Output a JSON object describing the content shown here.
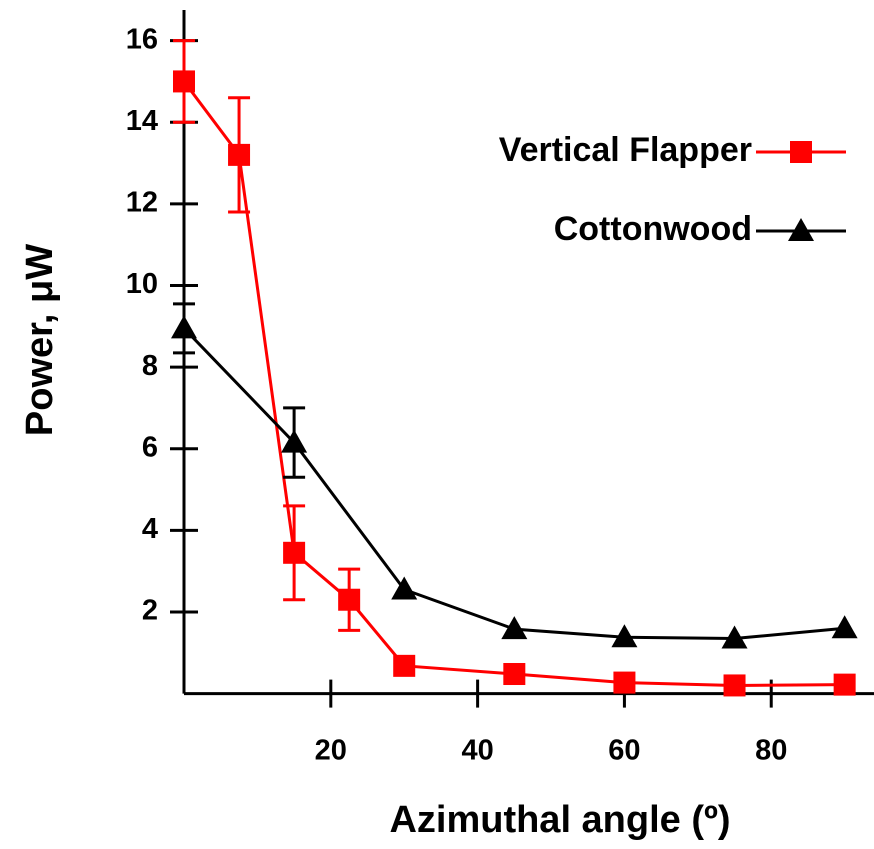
{
  "chart_data": {
    "type": "line",
    "x_label": "Azimuthal angle (º)",
    "y_label": "Power, μW",
    "xlim": [
      0,
      94
    ],
    "ylim": [
      0,
      16.75
    ],
    "xticks": [
      20,
      40,
      60,
      80
    ],
    "yticks": [
      2,
      4,
      6,
      8,
      10,
      12,
      14,
      16
    ],
    "legend": "top-right",
    "series": [
      {
        "name": "Vertical Flapper",
        "color": "#ff0000",
        "marker": "square",
        "x": [
          0,
          7.5,
          15,
          22.5,
          30,
          45,
          60,
          75,
          90
        ],
        "values": [
          15,
          13.2,
          3.45,
          2.3,
          0.68,
          0.48,
          0.27,
          0.2,
          0.22
        ],
        "errors": [
          1,
          1.4,
          1.15,
          0.75,
          null,
          null,
          null,
          null,
          null
        ]
      },
      {
        "name": "Cottonwood",
        "color": "#000000",
        "marker": "triangle",
        "x": [
          0,
          15,
          30,
          45,
          60,
          75,
          90
        ],
        "values": [
          8.95,
          6.15,
          2.55,
          1.58,
          1.38,
          1.35,
          1.6
        ],
        "errors": [
          0.6,
          0.85,
          null,
          null,
          null,
          null,
          null
        ]
      }
    ]
  }
}
